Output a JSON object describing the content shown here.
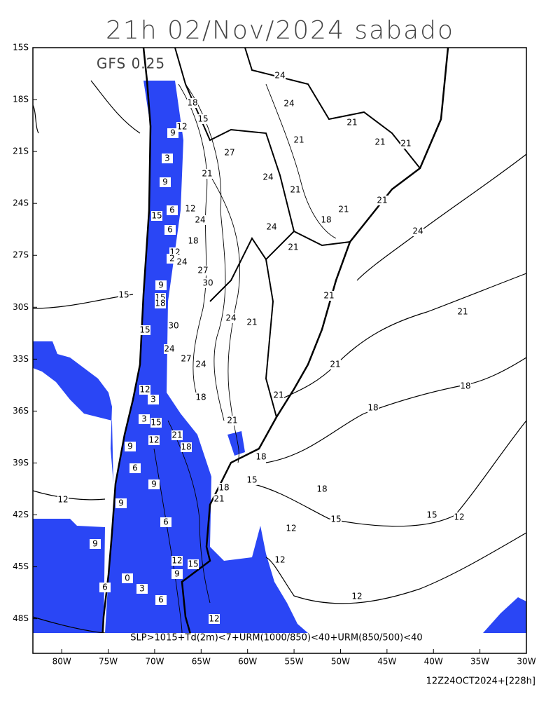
{
  "header": {
    "title": "21h 02/Nov/2024 sabado",
    "model": "GFS 0.25"
  },
  "map": {
    "lon_range": [
      -83.1,
      -30
    ],
    "lat_range": [
      -15,
      -50
    ],
    "lon_ticks": [
      {
        "value": -80,
        "label": "80W"
      },
      {
        "value": -75,
        "label": "75W"
      },
      {
        "value": -70,
        "label": "70W"
      },
      {
        "value": -65,
        "label": "65W"
      },
      {
        "value": -60,
        "label": "60W"
      },
      {
        "value": -55,
        "label": "55W"
      },
      {
        "value": -50,
        "label": "50W"
      },
      {
        "value": -45,
        "label": "45W"
      },
      {
        "value": -40,
        "label": "40W"
      },
      {
        "value": -35,
        "label": "35W"
      },
      {
        "value": -30,
        "label": "30W"
      }
    ],
    "lat_ticks": [
      {
        "value": -15,
        "label": "15S"
      },
      {
        "value": -18,
        "label": "18S"
      },
      {
        "value": -21,
        "label": "21S"
      },
      {
        "value": -24,
        "label": "24S"
      },
      {
        "value": -27,
        "label": "27S"
      },
      {
        "value": -30,
        "label": "30S"
      },
      {
        "value": -33,
        "label": "33S"
      },
      {
        "value": -36,
        "label": "36S"
      },
      {
        "value": -39,
        "label": "39S"
      },
      {
        "value": -42,
        "label": "42S"
      },
      {
        "value": -45,
        "label": "45S"
      },
      {
        "value": -48,
        "label": "48S"
      }
    ],
    "contour_labels": [
      24,
      24,
      18,
      12,
      9,
      15,
      21,
      21,
      21,
      21,
      27,
      3,
      21,
      24,
      9,
      21,
      21,
      21,
      6,
      12,
      15,
      24,
      18,
      24,
      24,
      6,
      18,
      21,
      12,
      2,
      24,
      27,
      30,
      9,
      15,
      15,
      18,
      21,
      21,
      24,
      21,
      30,
      15,
      24,
      27,
      24,
      21,
      18,
      12,
      3,
      18,
      21,
      18,
      3,
      15,
      21,
      21,
      12,
      18,
      9,
      18,
      6,
      15,
      18,
      18,
      9,
      21,
      12,
      9,
      15,
      12,
      15,
      6,
      12,
      9,
      12,
      12,
      15,
      9,
      0,
      6,
      3,
      6,
      12,
      12
    ]
  },
  "legend_note": "SLP>1015+Td(2m)<7+URM(1000/850)<40+URM(850/500)<40",
  "footer": "12Z24OCT2024+[228h]"
}
